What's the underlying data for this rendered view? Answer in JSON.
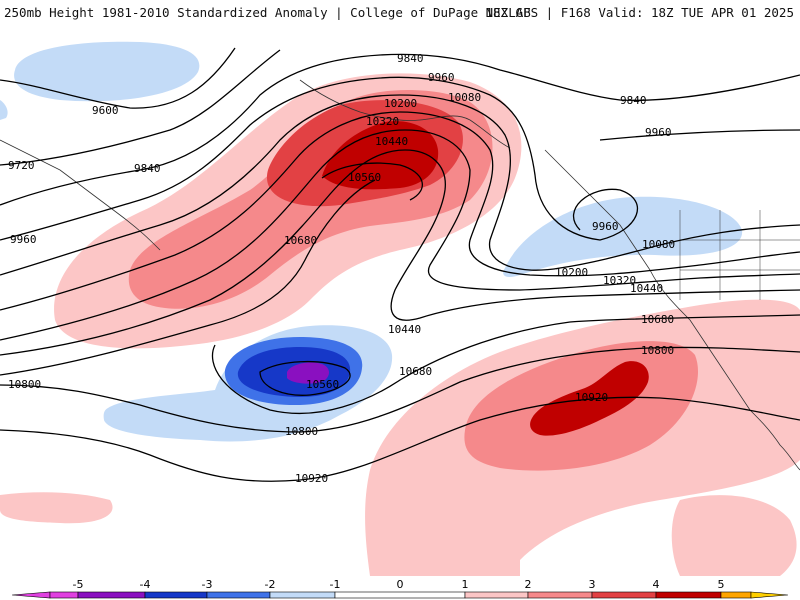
{
  "header": {
    "left": "250mb Height 1981-2010 Standardized Anomaly | College of DuPage NEXLAB",
    "right": "18Z GFS | F168 Valid: 18Z TUE APR 01 2025"
  },
  "contour_labels": {
    "c9600": "9600",
    "c9720": "9720",
    "c9840a": "9840",
    "c9840b": "9840",
    "c9840c": "9840",
    "c9960a": "9960",
    "c9960b": "9960",
    "c9960c": "9960",
    "c9960d": "9960",
    "c10080a": "10080",
    "c10080b": "10080",
    "c10200a": "10200",
    "c10200b": "10200",
    "c10320a": "10320",
    "c10320b": "10320",
    "c10440a": "10440",
    "c10440b": "10440",
    "c10440c": "10440",
    "c10560a": "10560",
    "c10560b": "10560",
    "c10680a": "10680",
    "c10680b": "10680",
    "c10680c": "10680",
    "c10800a": "10800",
    "c10800b": "10800",
    "c10800c": "10800",
    "c10920a": "10920",
    "c10920b": "10920"
  },
  "colorbar": {
    "ticks": [
      "-5",
      "-4",
      "-3",
      "-2",
      "-1",
      "0",
      "1",
      "2",
      "3",
      "4",
      "5"
    ],
    "colors": {
      "neg5": "#e040e0",
      "neg4": "#8a10c0",
      "neg3": "#1638c8",
      "neg2": "#3f72e8",
      "neg1": "#c3dbf7",
      "zero": "#ffffff",
      "pos1": "#fcc6c6",
      "pos2": "#f5898b",
      "pos3": "#e24144",
      "pos4": "#c00000",
      "pos5": "#ffa500"
    }
  }
}
